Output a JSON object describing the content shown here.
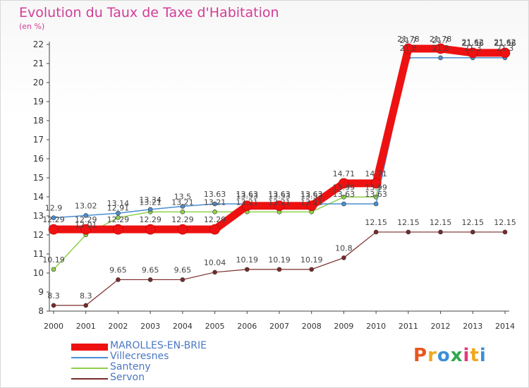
{
  "page": {
    "title": "Evolution du Taux de Taxe d'Habitation",
    "unit": "(en %)",
    "logo": "Proxiti",
    "logo_colors": [
      "#e8561e",
      "#f0a81c",
      "#3a8fd6",
      "#2fa84f",
      "#e23a7a",
      "#f0a81c",
      "#3a8fd6"
    ]
  },
  "chart_data": {
    "type": "line",
    "title": "Evolution du Taux de Taxe d'Habitation",
    "ylabel": "(en %)",
    "xlabel": "",
    "x": [
      2000,
      2001,
      2002,
      2003,
      2004,
      2005,
      2006,
      2007,
      2008,
      2009,
      2010,
      2011,
      2012,
      2013,
      2014
    ],
    "ylim": [
      8,
      22
    ],
    "yticks": [
      8,
      9,
      10,
      11,
      12,
      13,
      14,
      15,
      16,
      17,
      18,
      19,
      20,
      21,
      22
    ],
    "grid": false,
    "legend": "bottom-left",
    "series": [
      {
        "name": "MAROLLES-EN-BRIE",
        "color": "#ee1111",
        "values": [
          12.29,
          12.29,
          12.29,
          12.29,
          12.29,
          12.29,
          13.53,
          13.53,
          13.53,
          14.71,
          14.71,
          21.78,
          21.78,
          21.56,
          21.56
        ],
        "labels": [
          "",
          "",
          "12.29",
          "12.29",
          "12.29",
          "12.29",
          "13.53",
          "13.53",
          "13.53",
          "14.71",
          "14.71",
          "21.78",
          "21.78",
          "21.56",
          "21.56"
        ]
      },
      {
        "name": "Villecresnes",
        "color": "#4a8fd0",
        "values": [
          12.9,
          13.02,
          13.14,
          13.34,
          13.5,
          13.63,
          13.63,
          13.63,
          13.63,
          13.63,
          13.63,
          21.3,
          21.3,
          21.3,
          21.3
        ],
        "labels": [
          "12.9",
          "13.02",
          "13.14",
          "13.34",
          "13.5",
          "13.63",
          "13.63",
          "13.63",
          "13.63",
          "",
          "",
          "",
          "",
          "",
          ""
        ]
      },
      {
        "name": "Santeny",
        "color": "#8fd14a",
        "values": [
          10.19,
          12.01,
          12.91,
          13.21,
          13.21,
          13.21,
          13.21,
          13.21,
          13.21,
          13.99,
          13.99,
          21.7,
          21.7,
          21.62,
          21.62
        ],
        "labels": [
          "10.19",
          "12.01",
          "12.91",
          "13.21",
          "13.21",
          "13.21",
          "13.21",
          "13.21",
          "13.21",
          "13.99",
          "13.99",
          "21.7",
          "21.7",
          "21.62",
          "21.62"
        ]
      },
      {
        "name": "Servon",
        "color": "#7a2a2a",
        "values": [
          8.3,
          8.3,
          9.65,
          9.65,
          9.65,
          10.04,
          10.19,
          10.19,
          10.19,
          10.8,
          12.15,
          12.15,
          12.15,
          12.15,
          12.15
        ],
        "labels": [
          "8.3",
          "8.3",
          "9.65",
          "9.65",
          "9.65",
          "10.04",
          "10.19",
          "10.19",
          "10.19",
          "10.8",
          "12.15",
          "12.15",
          "12.15",
          "12.15",
          "12.15"
        ]
      }
    ],
    "extra_labels": [
      {
        "x": 2000,
        "y": 12.29,
        "text": "12.29"
      },
      {
        "x": 2001,
        "y": 12.29,
        "text": "12.29"
      },
      {
        "x": 2009,
        "y": 13.63,
        "text": "13.63"
      },
      {
        "x": 2010,
        "y": 13.63,
        "text": "13.63"
      },
      {
        "x": 2011,
        "y": 21.3,
        "text": "21.3"
      },
      {
        "x": 2012,
        "y": 21.3,
        "text": "21.3"
      },
      {
        "x": 2013,
        "y": 21.3,
        "text": "21.3"
      },
      {
        "x": 2014,
        "y": 21.3,
        "text": "21.3"
      }
    ]
  }
}
